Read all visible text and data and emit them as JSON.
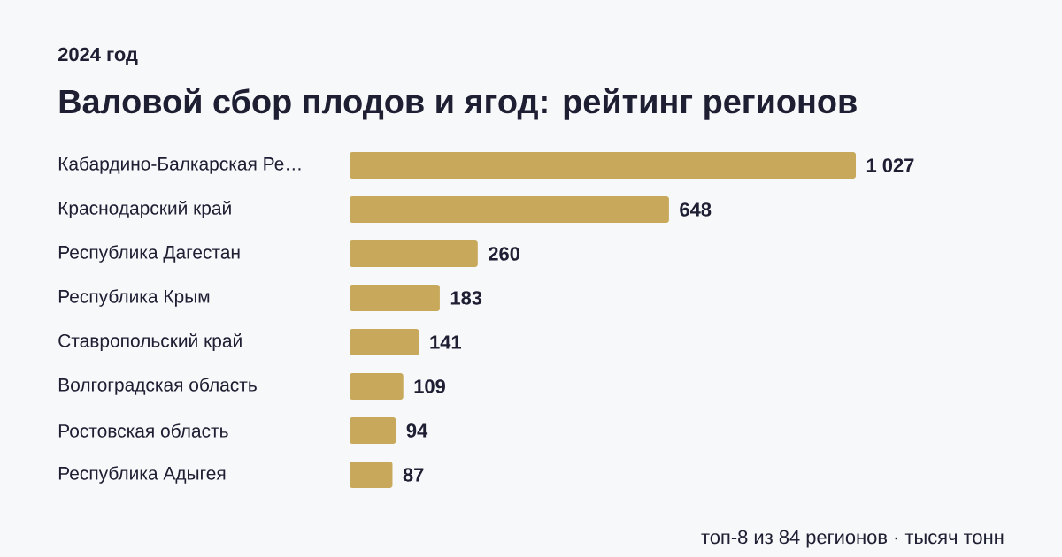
{
  "chart_data": {
    "type": "bar",
    "orientation": "horizontal",
    "title": "Валовой сбор плодов и ягод: рейтинг регионов",
    "subtitle": "2024 год",
    "categories": [
      "Кабардино-Балкарская Ре…",
      "Краснодарский край",
      "Республика Дагестан",
      "Республика Крым",
      "Ставропольский край",
      "Волгоградская область",
      "Ростовская область",
      "Республика Адыгея"
    ],
    "values": [
      1027,
      648,
      260,
      183,
      141,
      109,
      94,
      87
    ],
    "value_labels": [
      "1 027",
      "648",
      "260",
      "183",
      "141",
      "109",
      "94",
      "87"
    ],
    "color": "#c8a95c",
    "xlim": [
      0,
      1027
    ],
    "annotations": [
      "топ-8 из 84 регионов · тысяч тонн"
    ]
  }
}
